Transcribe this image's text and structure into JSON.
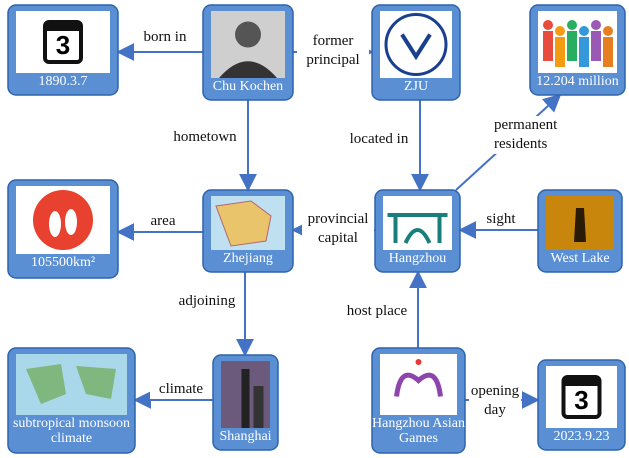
{
  "nodes": [
    {
      "label": "1890.3.7",
      "icon_text": "3"
    },
    {
      "label": "Chu Kochen"
    },
    {
      "label": "ZJU"
    },
    {
      "label": "12.204 million"
    },
    {
      "label": "105500km²"
    },
    {
      "label": "Zhejiang"
    },
    {
      "label": "Hangzhou"
    },
    {
      "label": "West Lake"
    },
    {
      "label": "subtropical monsoon climate"
    },
    {
      "label": "Shanghai"
    },
    {
      "label": "Hangzhou Asian Games"
    },
    {
      "label": "2023.9.23",
      "icon_text": "3"
    }
  ],
  "edges": [
    {
      "label": "born in"
    },
    {
      "label": "former principal"
    },
    {
      "label": "hometown"
    },
    {
      "label": "located in"
    },
    {
      "label": "permanent residents"
    },
    {
      "label": "area"
    },
    {
      "label": "provincial capital"
    },
    {
      "label": "sight"
    },
    {
      "label": "adjoining"
    },
    {
      "label": "climate"
    },
    {
      "label": "host place"
    },
    {
      "label": "opening day"
    }
  ]
}
